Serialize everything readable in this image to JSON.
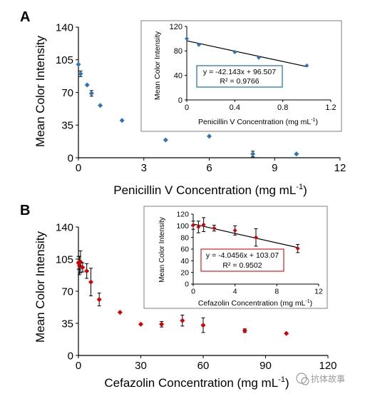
{
  "watermark": "抗体故事",
  "colors": {
    "series_a": "#2e75b6",
    "series_b": "#d40000",
    "box_a": "#2e75b6",
    "box_b": "#e03030",
    "axis": "#000000",
    "fit": "#000000"
  },
  "chart_data": [
    {
      "panel_label": "A",
      "type": "scatter",
      "xlabel": "Penicillin V Concentration (mg mL",
      "xlabel_sup": "-1",
      "xlabel_end": ")",
      "ylabel": "Mean Color Intensity",
      "xlim": [
        0,
        12
      ],
      "ylim": [
        0,
        140
      ],
      "xticks": [
        "0",
        "3",
        "6",
        "9",
        "12"
      ],
      "yticks": [
        "0",
        "35",
        "70",
        "105",
        "140"
      ],
      "x": [
        0,
        0.1,
        0.4,
        0.6,
        1,
        2,
        4,
        6,
        8,
        10
      ],
      "y": [
        100,
        90,
        78,
        69,
        56,
        40,
        19,
        23,
        4,
        4
      ],
      "yerr": [
        0,
        3,
        0,
        3,
        0,
        0,
        0,
        0,
        3,
        0
      ],
      "inset": {
        "xlabel": "Penicillin V Concentration (mg mL",
        "xlabel_sup": "-1",
        "xlabel_end": ")",
        "ylabel": "Mean Color Intensity",
        "xlim": [
          0,
          1.2
        ],
        "ylim": [
          0,
          120
        ],
        "xticks": [
          "0",
          "0.4",
          "0.8",
          "1.2"
        ],
        "yticks": [
          "0",
          "40",
          "80",
          "120"
        ],
        "x": [
          0,
          0.1,
          0.4,
          0.6,
          1
        ],
        "y": [
          100,
          90,
          78,
          69,
          56
        ],
        "fit_slope": -42.143,
        "fit_intercept": 96.507,
        "equation": "y = -42.143x + 96.507",
        "r2": "R² = 0.9766"
      }
    },
    {
      "panel_label": "B",
      "type": "scatter",
      "xlabel": "Cefazolin Concentration (mg mL",
      "xlabel_sup": "-1",
      "xlabel_end": ")",
      "ylabel": "Mean Color Intensity",
      "xlim": [
        0,
        120
      ],
      "ylim": [
        0,
        140
      ],
      "xticks": [
        "0",
        "30",
        "60",
        "90",
        "120"
      ],
      "yticks": [
        "0",
        "35",
        "70",
        "105",
        "140"
      ],
      "x": [
        0,
        0.5,
        1,
        2,
        4,
        6,
        10,
        20,
        30,
        40,
        50,
        60,
        80,
        100
      ],
      "y": [
        101,
        98,
        102,
        96,
        92,
        80,
        61,
        47,
        34,
        34,
        38,
        33,
        27,
        24
      ],
      "yerr": [
        7,
        10,
        12,
        5,
        8,
        15,
        7,
        0,
        0,
        3,
        6,
        8,
        2,
        0
      ],
      "inset": {
        "xlabel": "Cefazolin Concentration (mg mL",
        "xlabel_sup": "-1",
        "xlabel_end": ")",
        "ylabel": "Mean Color Intensity",
        "xlim": [
          0,
          12
        ],
        "ylim": [
          0,
          120
        ],
        "xticks": [
          "0",
          "4",
          "8",
          "12"
        ],
        "yticks": [
          "0",
          "20",
          "40",
          "60",
          "80",
          "100",
          "120"
        ],
        "x": [
          0,
          0.5,
          1,
          2,
          4,
          6,
          10
        ],
        "y": [
          101,
          98,
          102,
          96,
          92,
          80,
          61
        ],
        "yerr": [
          7,
          10,
          12,
          5,
          8,
          15,
          7
        ],
        "fit_slope": -4.0456,
        "fit_intercept": 103.07,
        "equation": "y = -4.0456x + 103.07",
        "r2": "R² = 0.9502"
      }
    }
  ]
}
